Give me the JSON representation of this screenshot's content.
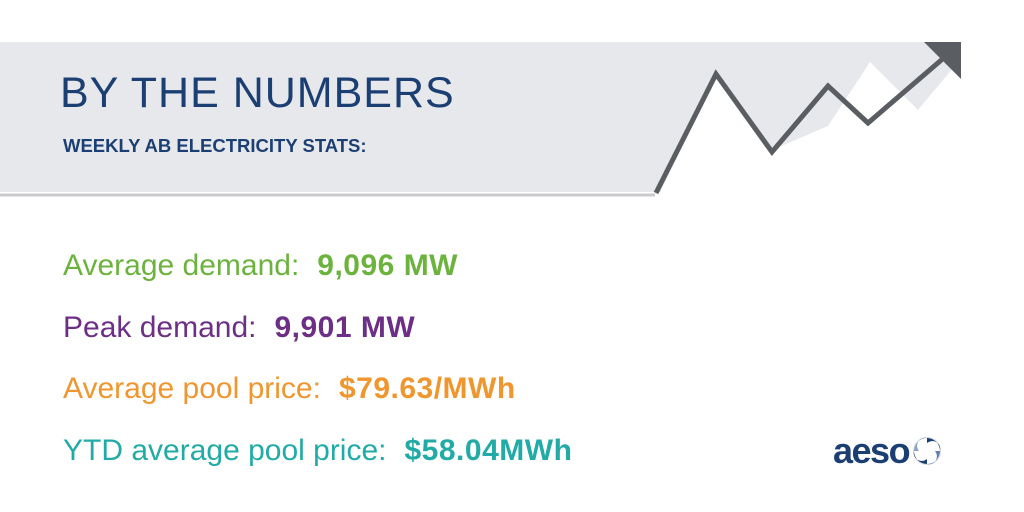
{
  "header": {
    "title": "BY THE NUMBERS",
    "subtitle": "WEEKLY AB ELECTRICITY STATS:"
  },
  "stats": [
    {
      "label": "Average demand:",
      "value": "9,096 MW",
      "color": "#6cb33e"
    },
    {
      "label": "Peak demand:",
      "value": "9,901 MW",
      "color": "#6d2f86"
    },
    {
      "label": "Average pool price:",
      "value": "$79.63/MWh",
      "color": "#f0962e"
    },
    {
      "label": "YTD average pool price:",
      "value": "$58.04MWh",
      "color": "#22aba6"
    }
  ],
  "logo": {
    "text": "aeso",
    "color": "#1b3f73",
    "icon": "swirl-emblem-icon"
  },
  "banner": {
    "fill": "#e7e8ec",
    "line_color": "#5a5d62",
    "graph_icon": "rising-zigzag-arrow-icon"
  }
}
